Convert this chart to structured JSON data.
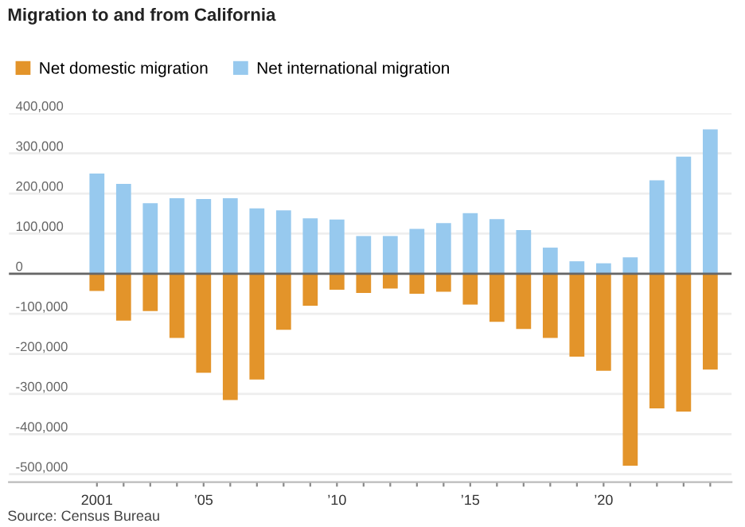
{
  "chart_data": {
    "type": "bar",
    "title": "Migration to and from California",
    "stacked": true,
    "categories": [
      "2001",
      null,
      null,
      null,
      "’05",
      null,
      null,
      null,
      null,
      "’10",
      null,
      null,
      null,
      null,
      "’15",
      null,
      null,
      null,
      null,
      "’20",
      null,
      null,
      null,
      null
    ],
    "series": [
      {
        "name": "Net domestic migration",
        "color": "#e3942a",
        "values": [
          -43000,
          -117000,
          -93000,
          -160000,
          -247000,
          -315000,
          -264000,
          -140000,
          -80000,
          -40000,
          -48000,
          -37000,
          -50000,
          -45000,
          -77000,
          -120000,
          -138000,
          -160000,
          -207000,
          -242000,
          -479000,
          -336000,
          -344000,
          -239000
        ]
      },
      {
        "name": "Net international migration",
        "color": "#97c9ee",
        "values": [
          250000,
          224000,
          176000,
          188000,
          186000,
          188000,
          163000,
          158000,
          138000,
          135000,
          94000,
          94000,
          112000,
          126000,
          151000,
          136000,
          109000,
          65000,
          31000,
          26000,
          41000,
          233000,
          292000,
          360000
        ]
      }
    ],
    "ylim": [
      -520000,
      400000
    ],
    "yticks": [
      {
        "value": -500000,
        "label": "-500,000"
      },
      {
        "value": -400000,
        "label": "-400,000"
      },
      {
        "value": -300000,
        "label": "-300,000"
      },
      {
        "value": -200000,
        "label": "-200,000"
      },
      {
        "value": -100000,
        "label": "-100,000"
      },
      0,
      {
        "value": 100000,
        "label": "100,000"
      },
      {
        "value": 200000,
        "label": "200,000"
      },
      {
        "value": 300000,
        "label": "300,000"
      },
      {
        "value": 400000,
        "label": "400,000"
      }
    ],
    "ref_lines": [
      {
        "axis": "y",
        "value": 0,
        "color": "#666666"
      }
    ],
    "grid": "y",
    "legend": "top left",
    "annotations": [
      "Source: Census Bureau"
    ]
  }
}
